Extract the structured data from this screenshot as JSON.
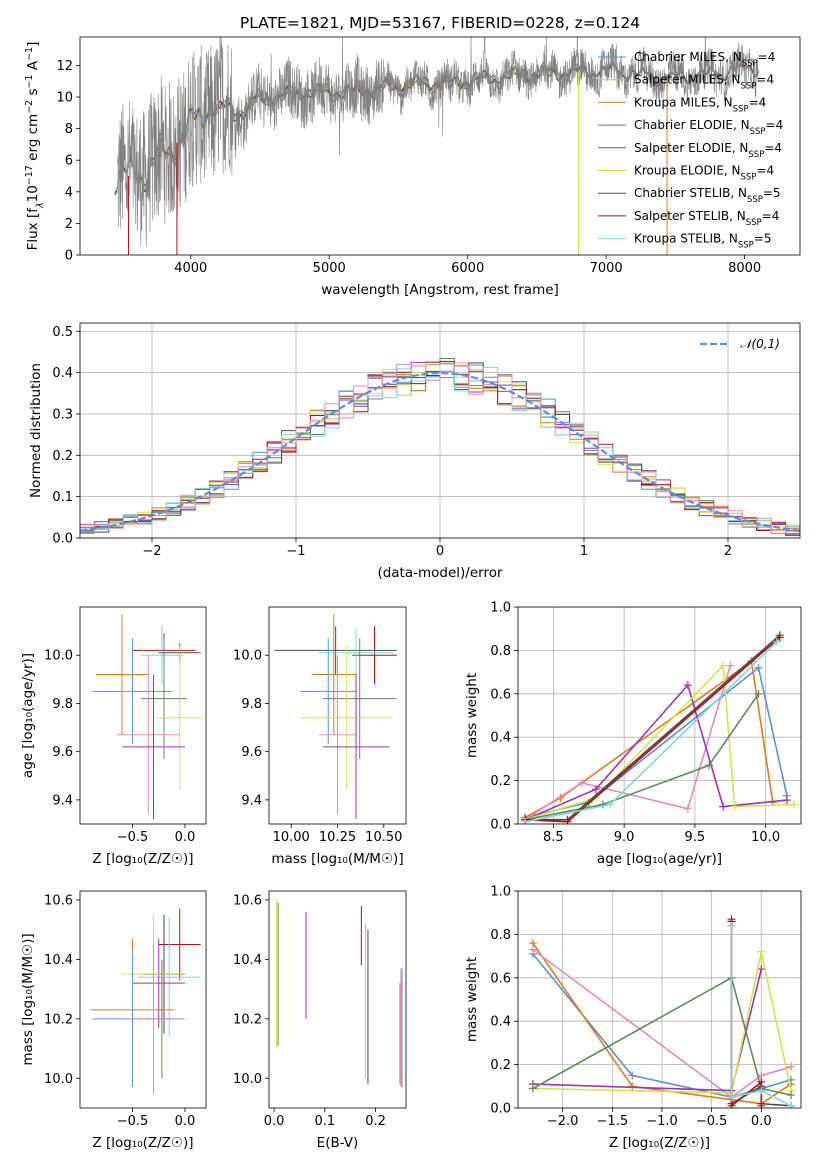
{
  "title": "PLATE=1821, MJD=53167, FIBERID=0228, z=0.124",
  "colors": {
    "chabrier_miles": "#5b8fd6",
    "salpeter_miles": "#e8b26a",
    "kroupa_miles": "#e07a1a",
    "chabrier_elodie": "#5e8c5c",
    "salpeter_elodie": "#9b35b4",
    "kroupa_elodie": "#d4e34a",
    "chabrier_stelib": "#4a4a4a",
    "salpeter_stelib": "#b31212",
    "kroupa_stelib": "#7fd8dc",
    "extra_pink": "#e68abd",
    "gauss": "#5b8fd6"
  },
  "chart_data": [
    {
      "id": "spectrum",
      "type": "line",
      "xlabel": "wavelength [Angstrom, rest frame]",
      "ylabel_parts": [
        "Flux [f",
        "λ",
        "10",
        "−17",
        " erg cm",
        "−2",
        " s",
        "−1",
        " A",
        "−1",
        "]"
      ],
      "xlim": [
        3200,
        8400
      ],
      "ylim": [
        0,
        13.8
      ],
      "xticks": [
        4000,
        5000,
        6000,
        7000,
        8000
      ],
      "yticks": [
        0,
        2,
        4,
        6,
        8,
        10,
        12
      ],
      "continuum": {
        "x": [
          3450,
          3550,
          3650,
          3750,
          3850,
          3950,
          4050,
          4150,
          4250,
          4350,
          4450,
          4600,
          4800,
          5000,
          5200,
          5400,
          5600,
          5800,
          6000,
          6200,
          6400,
          6600,
          6800,
          7000,
          7200,
          7400,
          7600,
          7800,
          8000,
          8100
        ],
        "y": [
          4.9,
          5.0,
          5.2,
          6.0,
          6.6,
          7.6,
          8.6,
          9.2,
          9.3,
          9.4,
          9.7,
          10.0,
          10.3,
          10.3,
          10.4,
          10.6,
          10.8,
          10.9,
          11.0,
          11.2,
          11.4,
          11.5,
          11.6,
          11.7,
          11.5,
          11.2,
          11.3,
          11.5,
          11.8,
          11.9
        ]
      },
      "drops": [
        {
          "x": 3550,
          "y": 0
        },
        {
          "x": 3900,
          "y": 0
        },
        {
          "x": 6800,
          "y": 0
        },
        {
          "x": 7440,
          "y": 0
        }
      ],
      "legend": [
        {
          "name": "Chabrier MILES",
          "n": "N",
          "sub": "SSP",
          "val": "=4",
          "color_key": "chabrier_miles"
        },
        {
          "name": "Salpeter MILES",
          "n": "N",
          "sub": "SSP",
          "val": "=4",
          "color_key": "salpeter_miles"
        },
        {
          "name": "Kroupa MILES",
          "n": "N",
          "sub": "SSP",
          "val": "=4",
          "color_key": "kroupa_miles"
        },
        {
          "name": "Chabrier ELODIE",
          "n": "N",
          "sub": "SSP",
          "val": "=4",
          "color_key": "chabrier_elodie"
        },
        {
          "name": "Salpeter ELODIE",
          "n": "N",
          "sub": "SSP",
          "val": "=4",
          "color_key": "salpeter_elodie"
        },
        {
          "name": "Kroupa ELODIE",
          "n": "N",
          "sub": "SSP",
          "val": "=4",
          "color_key": "kroupa_elodie"
        },
        {
          "name": "Chabrier STELIB",
          "n": "N",
          "sub": "SSP",
          "val": "=5",
          "color_key": "chabrier_stelib"
        },
        {
          "name": "Salpeter STELIB",
          "n": "N",
          "sub": "SSP",
          "val": "=4",
          "color_key": "salpeter_stelib"
        },
        {
          "name": "Kroupa STELIB",
          "n": "N",
          "sub": "SSP",
          "val": "=5",
          "color_key": "kroupa_stelib"
        }
      ],
      "legend_placement": "top-right"
    },
    {
      "id": "residuals",
      "type": "histogram",
      "xlabel": "(data-model)/error",
      "ylabel": "Normed distribution",
      "xlim": [
        -2.5,
        2.5
      ],
      "ylim": [
        0,
        0.52
      ],
      "xticks": [
        -2,
        -1,
        0,
        1,
        2
      ],
      "yticks": [
        0.0,
        0.1,
        0.2,
        0.3,
        0.4,
        0.5
      ],
      "grid": true,
      "bin_width": 0.1,
      "bin_start": -2.5,
      "gauss_label": "𝒩(0,1)",
      "legend_placement": "top-right"
    },
    {
      "id": "age_vs_Z",
      "type": "errorbar",
      "xlabel": "Z [log₁₀(Z/Z☉)]",
      "ylabel": "age  [log₁₀(age/yr)]",
      "xlim": [
        -1.0,
        0.2
      ],
      "ylim": [
        9.3,
        10.2
      ],
      "xticks": [
        -0.5,
        0.0
      ],
      "yticks": [
        9.4,
        9.6,
        9.8,
        10.0
      ],
      "points": [
        {
          "x": -0.2,
          "xerr": 0.3,
          "y": 10.02,
          "yerr": 0.07,
          "color_key": "salpeter_stelib"
        },
        {
          "x": -0.05,
          "xerr": 0.2,
          "y": 10.01,
          "yerr": 0.04,
          "color_key": "chabrier_stelib"
        },
        {
          "x": -0.22,
          "xerr": 0.2,
          "y": 10.0,
          "yerr": 0.12,
          "color_key": "kroupa_stelib"
        },
        {
          "x": -0.6,
          "xerr": 0.25,
          "y": 9.92,
          "yerr": 0.25,
          "color_key": "kroupa_miles"
        },
        {
          "x": -0.5,
          "xerr": 0.38,
          "y": 9.85,
          "yerr": 0.22,
          "color_key": "chabrier_miles"
        },
        {
          "x": -0.2,
          "xerr": 0.22,
          "y": 9.82,
          "yerr": 0.25,
          "color_key": "chabrier_elodie"
        },
        {
          "x": -0.05,
          "xerr": 0.22,
          "y": 9.74,
          "yerr": 0.3,
          "color_key": "kroupa_elodie"
        },
        {
          "x": -0.35,
          "xerr": 0.3,
          "y": 9.67,
          "yerr": 0.33,
          "color_key": "extra_pink"
        },
        {
          "x": -0.3,
          "xerr": 0.3,
          "y": 9.62,
          "yerr": 0.3,
          "color_key": "salpeter_elodie"
        }
      ]
    },
    {
      "id": "age_vs_mass",
      "type": "errorbar",
      "xlabel": "mass [log₁₀(M/M☉)]",
      "ylabel": "",
      "xlim": [
        9.88,
        10.62
      ],
      "ylim": [
        9.3,
        10.2
      ],
      "xticks": [
        10.0,
        10.25,
        10.5
      ],
      "yticks": [
        9.4,
        9.6,
        9.8,
        10.0
      ],
      "points": [
        {
          "x": 10.45,
          "xerr": 0.12,
          "y": 10.0,
          "yerr": 0.12,
          "color_key": "salpeter_stelib"
        },
        {
          "x": 10.24,
          "xerr": 0.33,
          "y": 10.02,
          "yerr": 0.1,
          "color_key": "chabrier_stelib"
        },
        {
          "x": 10.35,
          "xerr": 0.2,
          "y": 10.01,
          "yerr": 0.1,
          "color_key": "kroupa_stelib"
        },
        {
          "x": 10.23,
          "xerr": 0.12,
          "y": 9.92,
          "yerr": 0.25,
          "color_key": "kroupa_miles"
        },
        {
          "x": 10.2,
          "xerr": 0.15,
          "y": 9.85,
          "yerr": 0.22,
          "color_key": "chabrier_miles"
        },
        {
          "x": 10.37,
          "xerr": 0.2,
          "y": 9.82,
          "yerr": 0.25,
          "color_key": "chabrier_elodie"
        },
        {
          "x": 10.3,
          "xerr": 0.25,
          "y": 9.74,
          "yerr": 0.3,
          "color_key": "kroupa_elodie"
        },
        {
          "x": 10.25,
          "xerr": 0.1,
          "y": 9.67,
          "yerr": 0.33,
          "color_key": "extra_pink"
        },
        {
          "x": 10.35,
          "xerr": 0.18,
          "y": 9.62,
          "yerr": 0.3,
          "color_key": "salpeter_elodie"
        }
      ]
    },
    {
      "id": "weight_vs_age",
      "type": "line",
      "xlabel": "age  [log₁₀(age/yr)]",
      "ylabel": "mass weight",
      "xlim": [
        8.25,
        10.25
      ],
      "ylim": [
        0,
        1.0
      ],
      "xticks": [
        8.5,
        9.0,
        9.5,
        10.0
      ],
      "yticks": [
        0.0,
        0.2,
        0.4,
        0.6,
        0.8,
        1.0
      ],
      "grid": true,
      "series": [
        {
          "color_key": "chabrier_miles",
          "x": [
            8.3,
            8.75,
            9.95,
            10.15
          ],
          "y": [
            0.03,
            0.1,
            0.72,
            0.13
          ]
        },
        {
          "color_key": "kroupa_miles",
          "x": [
            8.3,
            8.55,
            9.9,
            10.05
          ],
          "y": [
            0.03,
            0.12,
            0.75,
            0.1
          ]
        },
        {
          "color_key": "extra_pink",
          "x": [
            8.3,
            8.7,
            9.45,
            9.75
          ],
          "y": [
            0.02,
            0.19,
            0.07,
            0.73
          ]
        },
        {
          "color_key": "salpeter_elodie",
          "x": [
            8.3,
            8.8,
            9.45,
            9.7,
            10.15
          ],
          "y": [
            0.02,
            0.16,
            0.64,
            0.08,
            0.11
          ]
        },
        {
          "color_key": "kroupa_elodie",
          "x": [
            8.3,
            8.8,
            9.7,
            9.78,
            10.2
          ],
          "y": [
            0.02,
            0.12,
            0.73,
            0.08,
            0.09
          ]
        },
        {
          "color_key": "chabrier_elodie",
          "x": [
            8.3,
            8.85,
            9.6,
            9.95
          ],
          "y": [
            0.02,
            0.09,
            0.27,
            0.6
          ]
        },
        {
          "color_key": "chabrier_stelib",
          "x": [
            8.3,
            8.6,
            10.1
          ],
          "y": [
            0.02,
            0.02,
            0.87
          ]
        },
        {
          "color_key": "salpeter_stelib",
          "x": [
            8.3,
            8.6,
            10.1
          ],
          "y": [
            0.02,
            0.01,
            0.86
          ]
        },
        {
          "color_key": "kroupa_stelib",
          "x": [
            8.3,
            8.9,
            10.08
          ],
          "y": [
            0.01,
            0.09,
            0.84
          ]
        }
      ]
    },
    {
      "id": "mass_vs_Z",
      "type": "errorbar",
      "xlabel": "Z [log₁₀(Z/Z☉)]",
      "ylabel": "mass [log₁₀(M/M☉)]",
      "xlim": [
        -1.0,
        0.2
      ],
      "ylim": [
        9.9,
        10.63
      ],
      "xticks": [
        -0.5,
        0.0
      ],
      "yticks": [
        10.0,
        10.2,
        10.4,
        10.6
      ],
      "points": [
        {
          "x": -0.05,
          "xerr": 0.2,
          "y": 10.45,
          "yerr": 0.12,
          "color_key": "salpeter_stelib"
        },
        {
          "x": -0.2,
          "xerr": 0.2,
          "y": 10.35,
          "yerr": 0.2,
          "color_key": "chabrier_stelib"
        },
        {
          "x": -0.15,
          "xerr": 0.3,
          "y": 10.34,
          "yerr": 0.2,
          "color_key": "kroupa_stelib"
        },
        {
          "x": -0.25,
          "xerr": 0.25,
          "y": 10.32,
          "yerr": 0.15,
          "color_key": "salpeter_elodie"
        },
        {
          "x": -0.3,
          "xerr": 0.3,
          "y": 10.35,
          "yerr": 0.2,
          "color_key": "kroupa_elodie"
        },
        {
          "x": -0.5,
          "xerr": 0.4,
          "y": 10.23,
          "yerr": 0.24,
          "color_key": "kroupa_miles"
        },
        {
          "x": -0.5,
          "xerr": 0.38,
          "y": 10.2,
          "yerr": 0.23,
          "color_key": "chabrier_miles"
        },
        {
          "x": -0.22,
          "xerr": 0.2,
          "y": 10.2,
          "yerr": 0.2,
          "color_key": "chabrier_elodie"
        },
        {
          "x": -0.3,
          "xerr": 0.3,
          "y": 10.2,
          "yerr": 0.25,
          "color_key": "extra_pink"
        }
      ]
    },
    {
      "id": "mass_vs_ebv",
      "type": "errorbar",
      "xlabel": "E(B-V)",
      "ylabel": "",
      "xlim": [
        -0.01,
        0.26
      ],
      "ylim": [
        9.9,
        10.63
      ],
      "xticks": [
        0.0,
        0.1,
        0.2
      ],
      "yticks": [
        10.0,
        10.2,
        10.4,
        10.6
      ],
      "points": [
        {
          "x": 0.005,
          "y": 10.35,
          "yerr": 0.25,
          "color_key": "kroupa_elodie"
        },
        {
          "x": 0.008,
          "y": 10.35,
          "yerr": 0.24,
          "color_key": "chabrier_elodie"
        },
        {
          "x": 0.063,
          "y": 10.38,
          "yerr": 0.18,
          "color_key": "salpeter_elodie"
        },
        {
          "x": 0.172,
          "y": 10.48,
          "yerr": 0.1,
          "color_key": "salpeter_stelib"
        },
        {
          "x": 0.18,
          "y": 10.26,
          "yerr": 0.26,
          "color_key": "kroupa_stelib"
        },
        {
          "x": 0.185,
          "y": 10.24,
          "yerr": 0.26,
          "color_key": "chabrier_stelib"
        },
        {
          "x": 0.248,
          "y": 10.15,
          "yerr": 0.17,
          "color_key": "kroupa_miles"
        },
        {
          "x": 0.25,
          "y": 10.17,
          "yerr": 0.2,
          "color_key": "extra_pink"
        },
        {
          "x": 0.252,
          "y": 10.17,
          "yerr": 0.2,
          "color_key": "chabrier_miles"
        }
      ]
    },
    {
      "id": "weight_vs_Z",
      "type": "line",
      "xlabel": "Z [log₁₀(Z/Z☉)]",
      "ylabel": "mass weight",
      "xlim": [
        -2.45,
        0.4
      ],
      "ylim": [
        0,
        1.0
      ],
      "xticks": [
        -2.0,
        -1.5,
        -1.0,
        -0.5,
        0.0
      ],
      "yticks": [
        0.0,
        0.2,
        0.4,
        0.6,
        0.8,
        1.0
      ],
      "grid": true,
      "series": [
        {
          "color_key": "chabrier_miles",
          "x": [
            -2.3,
            -1.3,
            -0.3,
            0.3
          ],
          "y": [
            0.71,
            0.15,
            0.05,
            0.13
          ]
        },
        {
          "color_key": "kroupa_miles",
          "x": [
            -2.3,
            -1.3,
            0.0,
            0.3
          ],
          "y": [
            0.76,
            0.1,
            0.02,
            0.11
          ]
        },
        {
          "color_key": "extra_pink",
          "x": [
            -2.3,
            -0.3,
            0.0,
            0.3
          ],
          "y": [
            0.73,
            0.05,
            0.15,
            0.19
          ]
        },
        {
          "color_key": "salpeter_elodie",
          "x": [
            -2.3,
            -0.3,
            0.0
          ],
          "y": [
            0.11,
            0.08,
            0.64
          ]
        },
        {
          "color_key": "kroupa_elodie",
          "x": [
            -2.3,
            -0.3,
            0.0,
            0.3
          ],
          "y": [
            0.09,
            0.07,
            0.72,
            0.08
          ]
        },
        {
          "color_key": "chabrier_elodie",
          "x": [
            -2.3,
            -0.3,
            0.0,
            0.3
          ],
          "y": [
            0.09,
            0.6,
            0.09,
            0.06
          ]
        },
        {
          "color_key": "chabrier_stelib",
          "x": [
            -0.3,
            -0.3,
            0.0,
            0.0,
            0.3
          ],
          "y": [
            0.87,
            0.02,
            0.1,
            0.02,
            0.01
          ]
        },
        {
          "color_key": "salpeter_stelib",
          "x": [
            -0.3,
            -0.3,
            0.0,
            0.0
          ],
          "y": [
            0.86,
            0.01,
            0.12,
            0.01
          ]
        },
        {
          "color_key": "kroupa_stelib",
          "x": [
            -0.3,
            -0.3,
            0.0,
            0.3
          ],
          "y": [
            0.84,
            0.05,
            0.08,
            0.01
          ]
        }
      ]
    }
  ]
}
